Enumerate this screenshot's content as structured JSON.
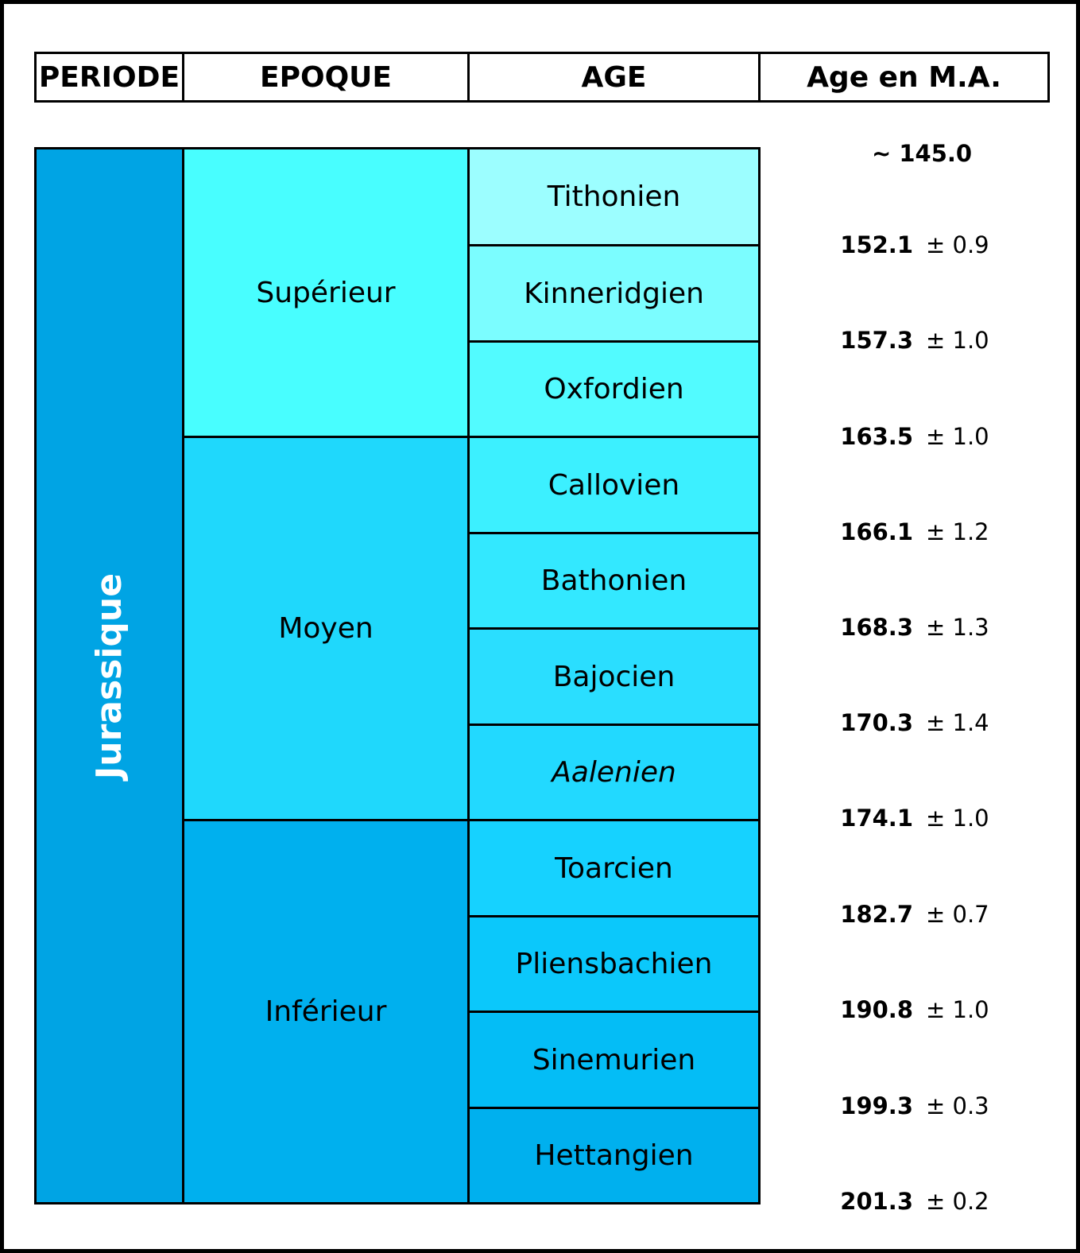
{
  "headers": {
    "periode": "PERIODE",
    "epoque": "EPOQUE",
    "age": "AGE",
    "age_ma": "Age en M.A."
  },
  "periode": {
    "label": "Jurassique",
    "color": "#00A4E4"
  },
  "epoques": [
    {
      "label": "Supérieur",
      "color": "#48FEFF"
    },
    {
      "label": "Moyen",
      "color": "#1FD8FC"
    },
    {
      "label": "Inférieur",
      "color": "#00B0EE"
    }
  ],
  "ages": [
    {
      "label": "Tithonien",
      "color": "#9CFEFF",
      "italic": false
    },
    {
      "label": "Kinneridgien",
      "color": "#7BFDFF",
      "italic": false
    },
    {
      "label": "Oxfordien",
      "color": "#52FBFF",
      "italic": false
    },
    {
      "label": "Callovien",
      "color": "#3CF0FF",
      "italic": false
    },
    {
      "label": "Bathonien",
      "color": "#33E8FF",
      "italic": false
    },
    {
      "label": "Bajocien",
      "color": "#2ADEFF",
      "italic": false
    },
    {
      "label": "Aalenien",
      "color": "#22D9FF",
      "italic": true
    },
    {
      "label": "Toarcien",
      "color": "#16D2FF",
      "italic": false
    },
    {
      "label": "Pliensbachien",
      "color": "#0BC8FB",
      "italic": false
    },
    {
      "label": "Sinemurien",
      "color": "#04BDF6",
      "italic": false
    },
    {
      "label": "Hettangien",
      "color": "#00B0EE",
      "italic": false
    }
  ],
  "ages_ma": [
    {
      "value": "~ 145.0",
      "uncertainty": ""
    },
    {
      "value": "152.1",
      "uncertainty": "± 0.9"
    },
    {
      "value": "157.3",
      "uncertainty": "± 1.0"
    },
    {
      "value": "163.5",
      "uncertainty": "± 1.0"
    },
    {
      "value": "166.1",
      "uncertainty": "± 1.2"
    },
    {
      "value": "168.3",
      "uncertainty": "± 1.3"
    },
    {
      "value": "170.3",
      "uncertainty": "± 1.4"
    },
    {
      "value": "174.1",
      "uncertainty": "± 1.0"
    },
    {
      "value": "182.7",
      "uncertainty": "± 0.7"
    },
    {
      "value": "190.8",
      "uncertainty": "± 1.0"
    },
    {
      "value": "199.3",
      "uncertainty": "± 0.3"
    },
    {
      "value": "201.3",
      "uncertainty": "± 0.2"
    }
  ]
}
